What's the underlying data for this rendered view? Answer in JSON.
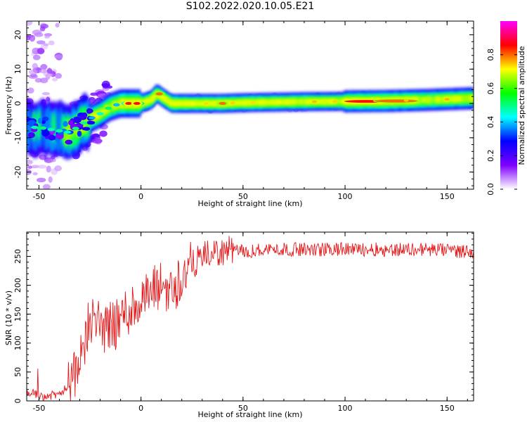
{
  "title": "S102.2022.020.10.05.E21",
  "chart_data": [
    {
      "type": "heatmap",
      "xlabel": "Height of straight line (km)",
      "ylabel": "Frequency (Hz)",
      "xlim": [
        -56,
        163
      ],
      "ylim": [
        -25,
        24
      ],
      "x_ticks": [
        -50,
        0,
        50,
        100,
        150
      ],
      "y_ticks": [
        -20,
        -10,
        0,
        10,
        20
      ],
      "colorbar": {
        "label": "Normalized spectral amplitude",
        "range": [
          0,
          1
        ],
        "ticks": [
          0.0,
          0.2,
          0.4,
          0.6,
          0.8
        ],
        "colors": [
          "#ffffff",
          "#7f00ff",
          "#0000ff",
          "#00ffff",
          "#00ff00",
          "#ffff00",
          "#ff0000",
          "#ff00ff"
        ]
      },
      "ridge": {
        "x": [
          -56,
          -50,
          -45,
          -40,
          -35,
          -30,
          -25,
          -20,
          -15,
          -10,
          -5,
          0,
          5,
          8,
          10,
          15,
          20,
          30,
          40,
          50,
          60,
          80,
          100,
          120,
          140,
          163
        ],
        "freq": [
          -7,
          -7,
          -7.5,
          -8,
          -8.5,
          -6.5,
          -4.5,
          -3,
          -1,
          0,
          0,
          0,
          1,
          3,
          2,
          0,
          0,
          0,
          0,
          0.2,
          0.3,
          0.5,
          0.6,
          0.7,
          1.0,
          1.5
        ]
      },
      "peaks": [
        {
          "x": -6,
          "freq": 0,
          "amplitude": 0.95
        },
        {
          "x": -2,
          "freq": 0,
          "amplitude": 0.95
        },
        {
          "x": 9,
          "freq": 2.8,
          "amplitude": 0.9
        },
        {
          "x": 40,
          "freq": 0,
          "amplitude": 0.9
        },
        {
          "x": 110,
          "freq": 0.6,
          "amplitude": 0.95
        },
        {
          "x": 125,
          "freq": 0.7,
          "amplitude": 0.9
        }
      ]
    },
    {
      "type": "line",
      "xlabel": "Height of straight line (km)",
      "ylabel": "SNR (10 * v/v)",
      "xlim": [
        -56,
        163
      ],
      "ylim": [
        0,
        292
      ],
      "x_ticks": [
        -50,
        0,
        50,
        100,
        150
      ],
      "y_ticks": [
        0,
        50,
        100,
        150,
        200,
        250
      ],
      "color": "#e31a1c",
      "series": [
        {
          "x": [
            -56,
            -50,
            -45,
            -40,
            -35,
            -30,
            -27,
            -25,
            -22,
            -20,
            -17,
            -15,
            -12,
            -10,
            -5,
            0,
            5,
            10,
            15,
            20,
            25,
            30,
            35,
            40,
            45,
            50,
            60,
            80,
            100,
            120,
            140,
            163
          ],
          "values": [
            15,
            10,
            8,
            12,
            25,
            60,
            110,
            150,
            125,
            140,
            120,
            140,
            130,
            145,
            160,
            170,
            185,
            200,
            190,
            215,
            235,
            250,
            255,
            258,
            262,
            258,
            262,
            262,
            262,
            262,
            262,
            258
          ]
        }
      ]
    }
  ]
}
